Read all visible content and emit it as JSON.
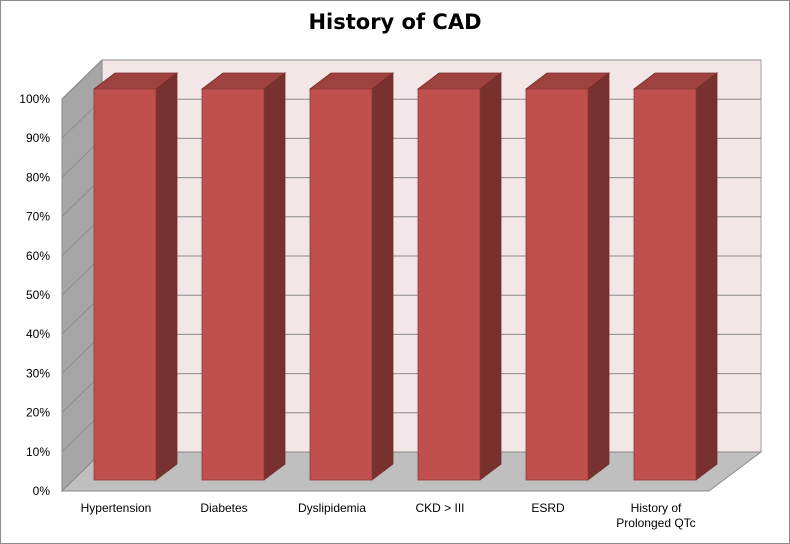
{
  "chart_data": {
    "type": "bar",
    "title": "History of CAD",
    "categories": [
      "Hypertension",
      "Diabetes",
      "Dyslipidemia",
      "CKD > III",
      "ESRD",
      "History of Prolonged QTc"
    ],
    "values": [
      100,
      100,
      100,
      100,
      100,
      100
    ],
    "ylim": [
      0,
      100
    ],
    "ytick_labels": [
      "0%",
      "10%",
      "20%",
      "30%",
      "40%",
      "50%",
      "60%",
      "70%",
      "80%",
      "90%",
      "100%"
    ],
    "grid": true,
    "legend": "none",
    "bar_color": "#c0504d",
    "back_wall_color": "#f2e6e6",
    "side_wall_color": "#a6a6a6",
    "floor_color": "#bfbfbf"
  }
}
